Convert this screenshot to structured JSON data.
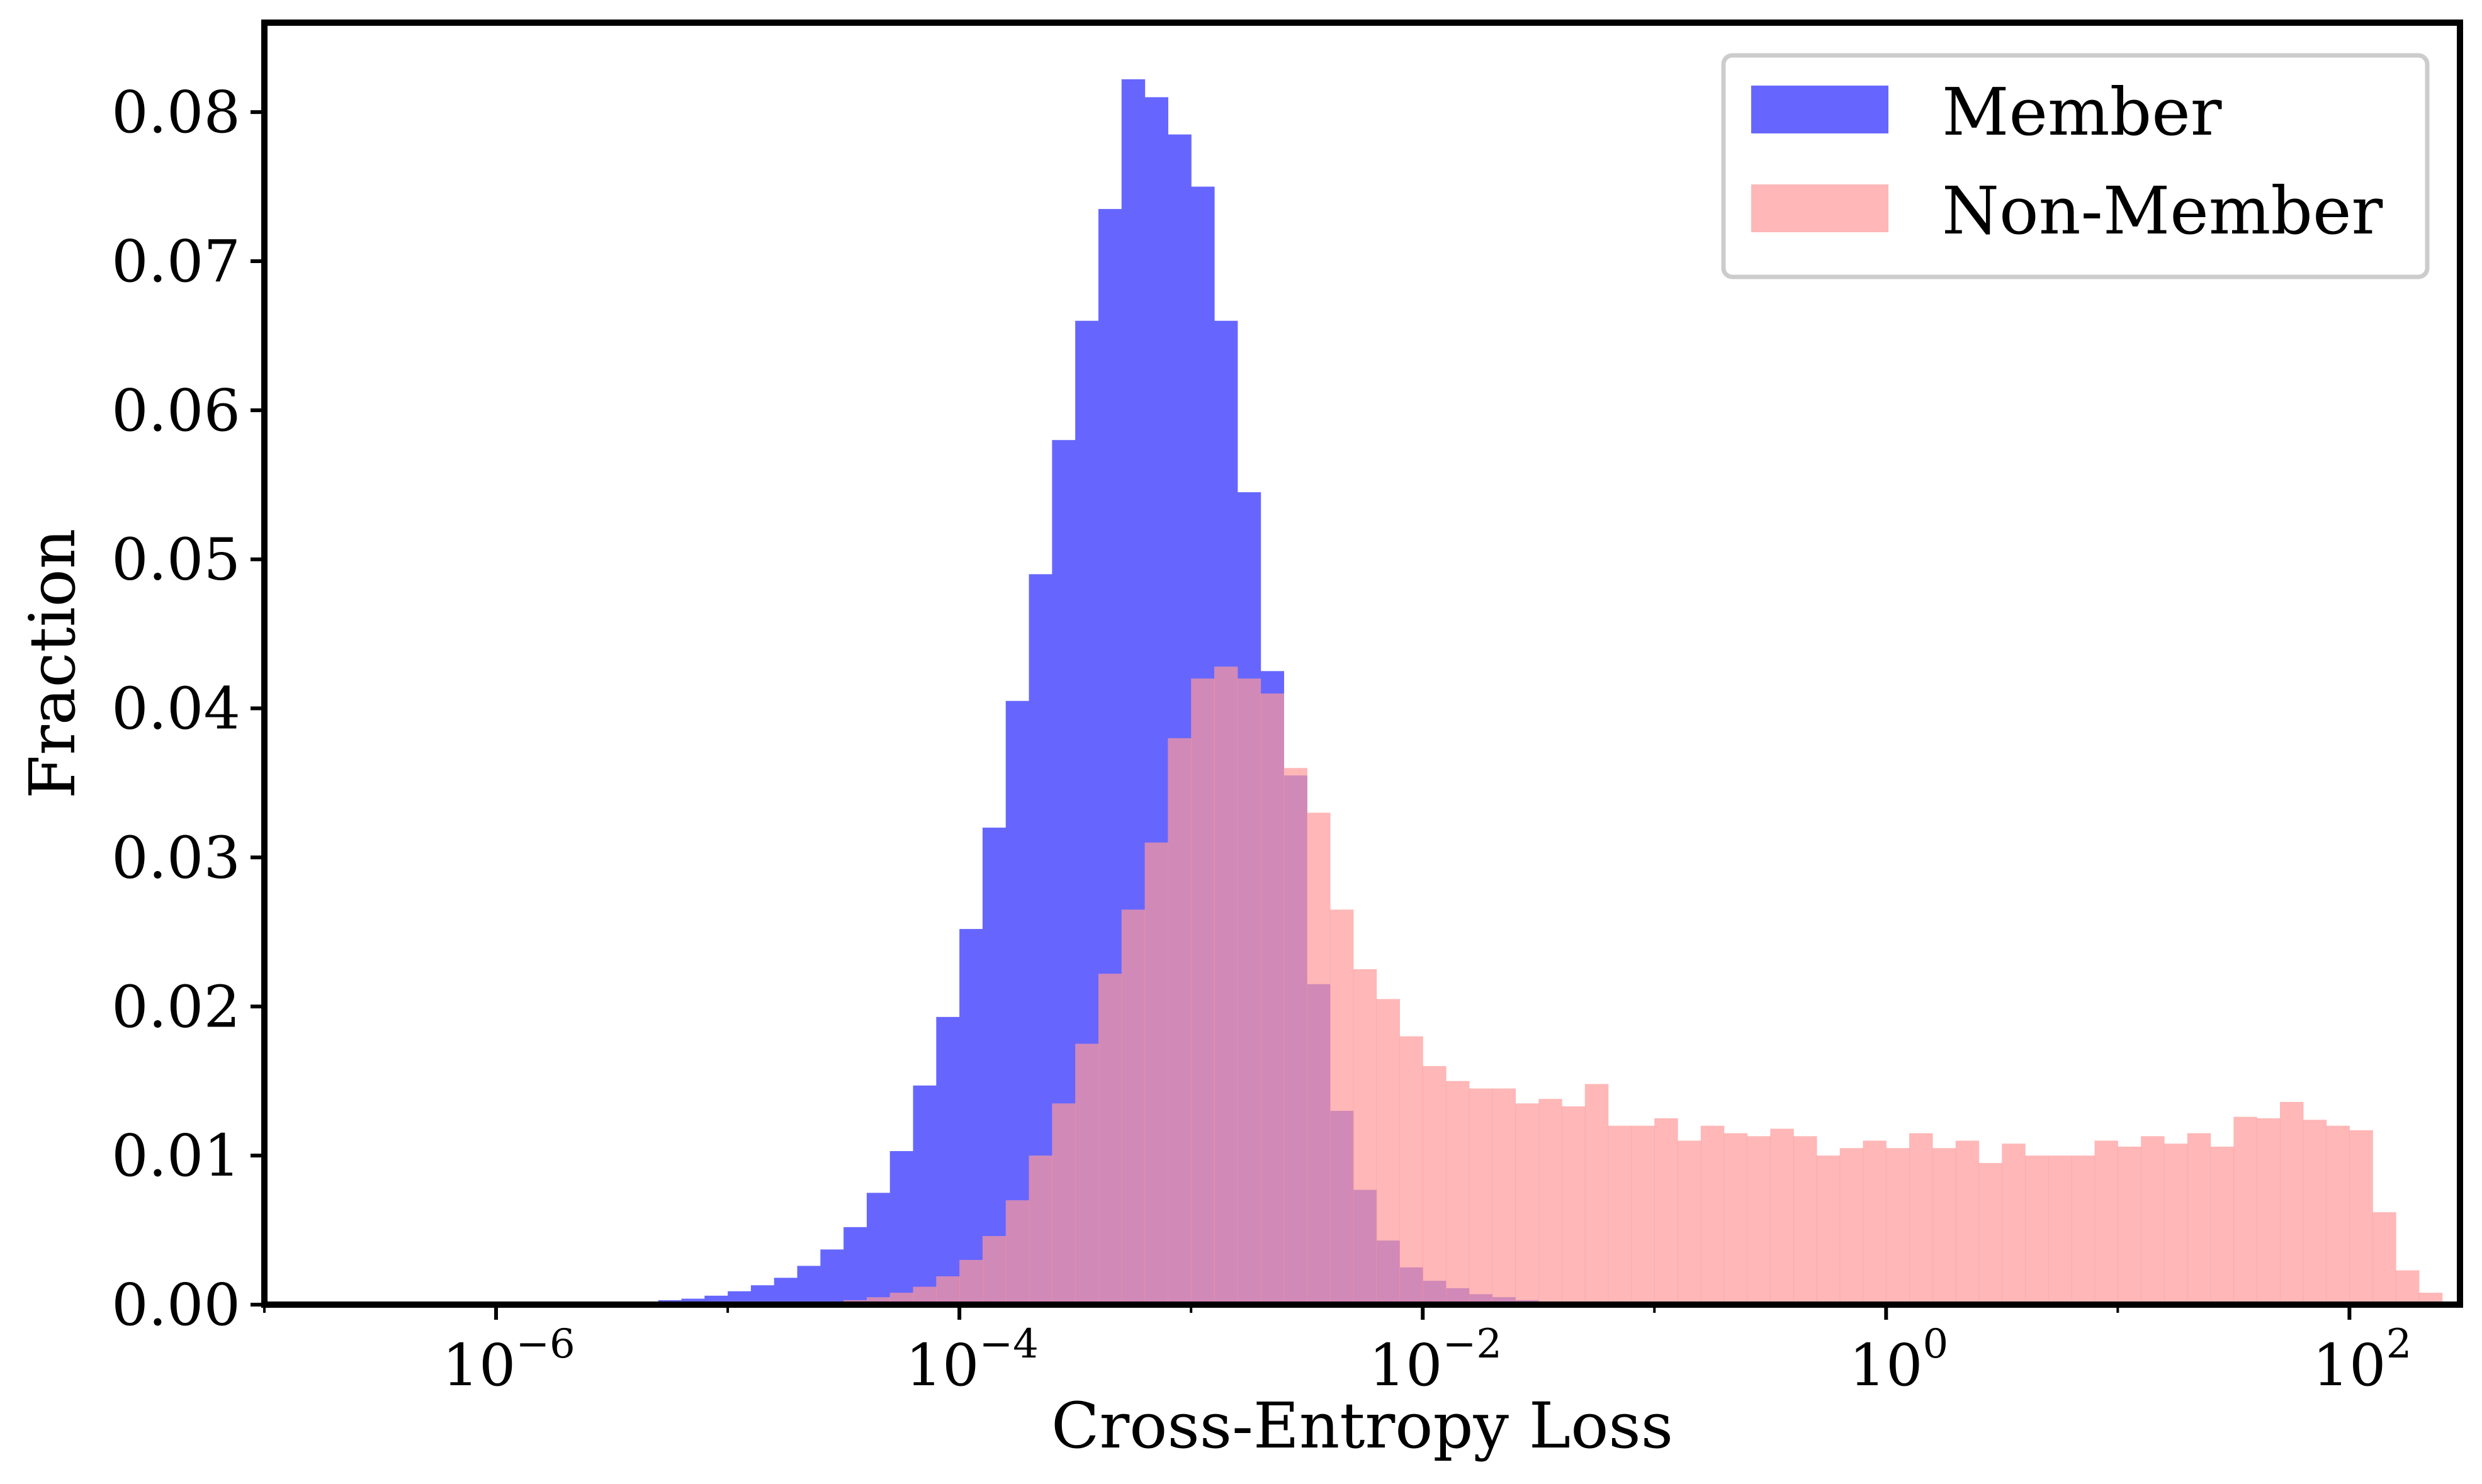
{
  "chart_data": {
    "type": "bar",
    "title": "",
    "xlabel": "Cross-Entropy Loss",
    "ylabel": "Fraction",
    "xscale": "log",
    "xlim": [
      1e-07,
      300
    ],
    "ylim": [
      0,
      0.086
    ],
    "y_ticks": [
      0.0,
      0.01,
      0.02,
      0.03,
      0.04,
      0.05,
      0.06,
      0.07,
      0.08
    ],
    "y_tick_labels": [
      "0.00",
      "0.01",
      "0.02",
      "0.03",
      "0.04",
      "0.05",
      "0.06",
      "0.07",
      "0.08"
    ],
    "x_ticks": [
      {
        "value": 1e-06,
        "base": "10",
        "exponent": "−6"
      },
      {
        "value": 0.0001,
        "base": "10",
        "exponent": "−4"
      },
      {
        "value": 0.01,
        "base": "10",
        "exponent": "−2"
      },
      {
        "value": 1,
        "base": "10",
        "exponent": "0"
      },
      {
        "value": 100,
        "base": "10",
        "exponent": "2"
      }
    ],
    "grid": false,
    "legend_position": "top-right",
    "bin_log10_start": -5.8,
    "bin_log10_width": 0.1,
    "series": [
      {
        "name": "Member",
        "color": "#6666ff",
        "values": [
          0.0001,
          0.0001,
          0.0001,
          0.0002,
          0.0002,
          0.0003,
          0.0004,
          0.0006,
          0.0009,
          0.0013,
          0.0018,
          0.0026,
          0.0037,
          0.0052,
          0.0075,
          0.0103,
          0.0147,
          0.0193,
          0.0252,
          0.032,
          0.0405,
          0.049,
          0.058,
          0.066,
          0.0735,
          0.0822,
          0.081,
          0.0785,
          0.075,
          0.066,
          0.0545,
          0.0425,
          0.0355,
          0.0215,
          0.013,
          0.0077,
          0.0043,
          0.0025,
          0.0016,
          0.0011,
          0.0007,
          0.0005,
          0.0003,
          0.0002,
          0.0002,
          0.0001,
          0.0001,
          0.0001,
          0.0001,
          0.0001,
          0.0001,
          0.0001,
          0.0001,
          0.0001,
          0.0001,
          0.0001,
          0.0001,
          0.0001,
          0.0001,
          0.0001,
          0.0001,
          0.0001,
          0.0001,
          0.0001,
          0.0001,
          0.0001,
          0.0001,
          0.0001,
          0.0001,
          0.0001,
          0.0001,
          0.0001,
          0.0001,
          0.0001,
          0.0001,
          0.0001,
          0.0001,
          0.0001,
          0.0001
        ]
      },
      {
        "name": "Non-Member",
        "color": "#ff9999",
        "values": [
          0,
          0,
          0,
          0,
          0,
          0,
          0,
          0,
          0,
          0,
          0,
          0.0001,
          0.0002,
          0.0003,
          0.0005,
          0.0008,
          0.0012,
          0.0019,
          0.003,
          0.0046,
          0.007,
          0.01,
          0.0135,
          0.0175,
          0.0222,
          0.0265,
          0.031,
          0.038,
          0.042,
          0.0428,
          0.042,
          0.041,
          0.036,
          0.033,
          0.0265,
          0.0225,
          0.0205,
          0.018,
          0.016,
          0.015,
          0.0145,
          0.0145,
          0.0135,
          0.0138,
          0.0133,
          0.0148,
          0.012,
          0.012,
          0.0125,
          0.011,
          0.012,
          0.0115,
          0.0113,
          0.0118,
          0.0113,
          0.01,
          0.0105,
          0.011,
          0.0105,
          0.0115,
          0.0105,
          0.011,
          0.0095,
          0.0108,
          0.01,
          0.01,
          0.01,
          0.011,
          0.0106,
          0.0113,
          0.0108,
          0.0115,
          0.0106,
          0.0126,
          0.0125,
          0.0136,
          0.0124,
          0.012,
          0.0117,
          0.0062,
          0.0023,
          0.0008
        ]
      }
    ]
  }
}
